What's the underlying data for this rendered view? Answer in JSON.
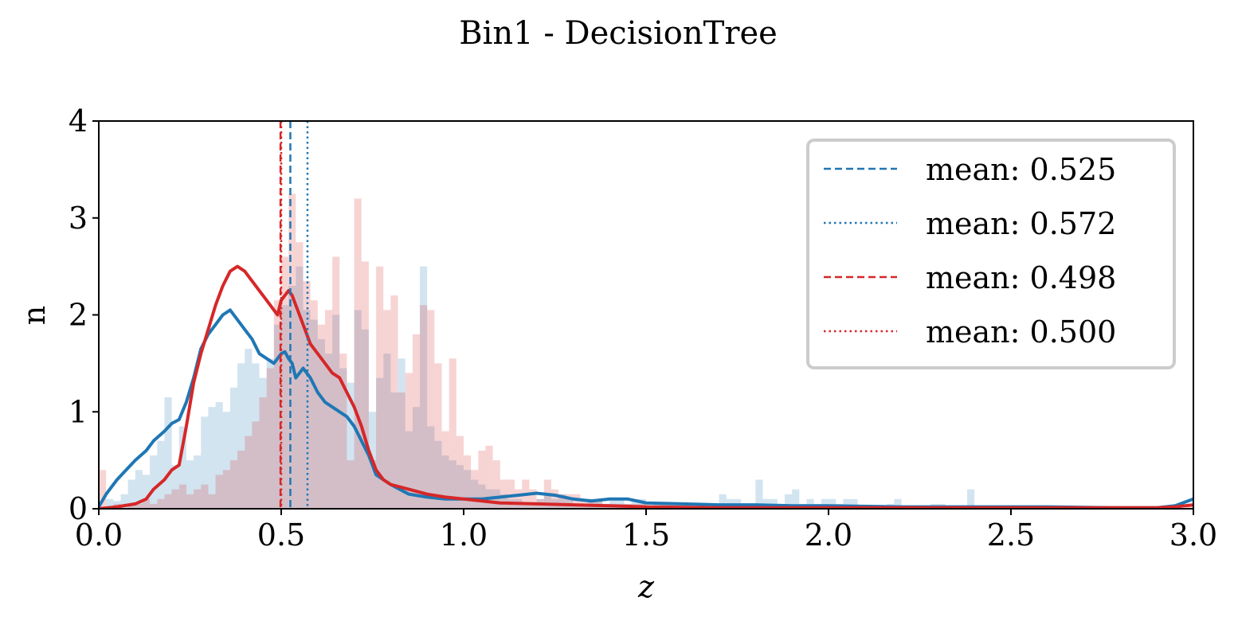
{
  "chart_data": {
    "type": "histogram+line",
    "title": "Bin1 - DecisionTree",
    "xlabel": "z",
    "ylabel": "n",
    "xlim": [
      0.0,
      3.0
    ],
    "ylim": [
      0,
      4
    ],
    "xticks": [
      "0.0",
      "0.5",
      "1.0",
      "1.5",
      "2.0",
      "2.5",
      "3.0"
    ],
    "yticks": [
      "0",
      "1",
      "2",
      "3",
      "4"
    ],
    "legend_position": "top-right",
    "colors": {
      "blue": "#1f77b4",
      "red": "#d62728"
    },
    "histograms": [
      {
        "color": "#1f77b4",
        "opacity": 0.2,
        "bin_width": 0.02,
        "values": [
          0.0,
          0.1,
          0.08,
          0.15,
          0.3,
          0.4,
          0.35,
          0.55,
          0.7,
          1.15,
          0.45,
          0.85,
          0.5,
          0.55,
          0.95,
          1.05,
          1.1,
          1.0,
          1.25,
          1.5,
          1.65,
          1.5,
          1.35,
          1.55,
          1.9,
          2.1,
          2.3,
          2.5,
          2.05,
          1.95,
          1.75,
          1.6,
          2.0,
          1.45,
          1.3,
          2.05,
          1.85,
          1.0,
          1.35,
          1.6,
          1.2,
          1.55,
          0.8,
          1.05,
          2.5,
          0.85,
          0.7,
          0.55,
          0.5,
          0.45,
          0.4,
          0.3,
          0.25,
          0.2,
          0.2,
          0.15,
          0.1,
          0.1,
          0.05,
          0.05,
          0.1,
          0.15,
          0.1,
          0.15,
          0.1,
          0.05,
          0.05,
          0.1,
          0.1,
          0.05,
          0.1,
          0.1,
          0.05,
          0.1,
          0.1,
          0.0,
          0.05,
          0.05,
          0.05,
          0.05,
          0.05,
          0.05,
          0.0,
          0.0,
          0.0,
          0.15,
          0.1,
          0.1,
          0.0,
          0.0,
          0.3,
          0.1,
          0.1,
          0.05,
          0.15,
          0.2,
          0.05,
          0.1,
          0.05,
          0.1,
          0.1,
          0.05,
          0.1,
          0.1,
          0.0,
          0.0,
          0.0,
          0.0,
          0.05,
          0.1,
          0.0,
          0.0,
          0.0,
          0.0,
          0.05,
          0.05,
          0.0,
          0.0,
          0.0,
          0.2,
          0.0,
          0.0,
          0.0,
          0.0,
          0.0,
          0.0,
          0.0,
          0.0,
          0.0,
          0.0,
          0.0,
          0.0,
          0.0,
          0.0,
          0.0,
          0.0,
          0.0,
          0.0,
          0.0,
          0.0,
          0.0,
          0.0,
          0.0,
          0.0,
          0.0,
          0.0,
          0.0,
          0.0,
          0.0,
          0.0
        ]
      },
      {
        "color": "#d62728",
        "opacity": 0.2,
        "bin_width": 0.02,
        "values": [
          0.4,
          0.0,
          0.05,
          0.0,
          0.05,
          0.05,
          0.1,
          0.05,
          0.1,
          0.15,
          0.2,
          0.25,
          0.15,
          0.2,
          0.25,
          0.15,
          0.35,
          0.4,
          0.5,
          0.6,
          0.75,
          0.9,
          1.15,
          1.45,
          2.15,
          2.6,
          3.25,
          2.75,
          2.35,
          2.15,
          1.9,
          2.05,
          2.6,
          1.6,
          0.5,
          3.2,
          2.55,
          0.5,
          2.5,
          2.05,
          2.2,
          1.2,
          1.4,
          1.8,
          2.1,
          2.05,
          1.5,
          0.8,
          1.55,
          0.75,
          0.55,
          0.4,
          0.6,
          0.65,
          0.5,
          0.3,
          0.3,
          0.2,
          0.3,
          0.2,
          0.1,
          0.3,
          0.2,
          0.15,
          0.15,
          0.15,
          0.1,
          0.1,
          0.1,
          0.05,
          0.05,
          0.05,
          0.05,
          0.05,
          0.05,
          0.0,
          0.0,
          0.05,
          0.05,
          0.05,
          0.05,
          0.0,
          0.0,
          0.0,
          0.0,
          0.0,
          0.0,
          0.0,
          0.0,
          0.0,
          0.0,
          0.0,
          0.0,
          0.0,
          0.0,
          0.0,
          0.0,
          0.0,
          0.0,
          0.0,
          0.0,
          0.0,
          0.0,
          0.0,
          0.0,
          0.0,
          0.0,
          0.0,
          0.0,
          0.0,
          0.0,
          0.0,
          0.0,
          0.0,
          0.0,
          0.0,
          0.0,
          0.0,
          0.0,
          0.0,
          0.0,
          0.0,
          0.0,
          0.0,
          0.0,
          0.0,
          0.0,
          0.0,
          0.0,
          0.0,
          0.0,
          0.0,
          0.0,
          0.0,
          0.0,
          0.0,
          0.0,
          0.0,
          0.0,
          0.0,
          0.0,
          0.0,
          0.0,
          0.0,
          0.0,
          0.0,
          0.0,
          0.0,
          0.0,
          0.05
        ]
      }
    ],
    "series": [
      {
        "color": "#1f77b4",
        "x": [
          0.0,
          0.02,
          0.05,
          0.08,
          0.1,
          0.13,
          0.15,
          0.18,
          0.2,
          0.22,
          0.24,
          0.26,
          0.28,
          0.3,
          0.32,
          0.34,
          0.36,
          0.38,
          0.4,
          0.42,
          0.44,
          0.46,
          0.48,
          0.5,
          0.51,
          0.52,
          0.53,
          0.54,
          0.55,
          0.56,
          0.58,
          0.6,
          0.62,
          0.64,
          0.66,
          0.68,
          0.7,
          0.72,
          0.74,
          0.76,
          0.78,
          0.8,
          0.85,
          0.9,
          0.95,
          1.0,
          1.05,
          1.1,
          1.15,
          1.2,
          1.25,
          1.3,
          1.35,
          1.4,
          1.45,
          1.5,
          1.6,
          1.7,
          1.8,
          1.9,
          2.0,
          2.2,
          2.4,
          2.6,
          2.8,
          2.9,
          2.95,
          3.0
        ],
        "y": [
          0.02,
          0.15,
          0.3,
          0.42,
          0.5,
          0.6,
          0.7,
          0.8,
          0.88,
          0.92,
          1.1,
          1.35,
          1.65,
          1.8,
          1.9,
          2.0,
          2.05,
          1.95,
          1.85,
          1.75,
          1.6,
          1.55,
          1.5,
          1.6,
          1.62,
          1.55,
          1.5,
          1.35,
          1.4,
          1.45,
          1.35,
          1.2,
          1.1,
          1.05,
          1.0,
          0.95,
          0.85,
          0.7,
          0.55,
          0.35,
          0.3,
          0.25,
          0.15,
          0.12,
          0.1,
          0.1,
          0.1,
          0.12,
          0.14,
          0.16,
          0.14,
          0.1,
          0.08,
          0.1,
          0.1,
          0.06,
          0.05,
          0.04,
          0.04,
          0.03,
          0.03,
          0.02,
          0.02,
          0.02,
          0.01,
          0.01,
          0.03,
          0.1
        ]
      },
      {
        "color": "#d62728",
        "x": [
          0.0,
          0.05,
          0.1,
          0.13,
          0.15,
          0.18,
          0.2,
          0.22,
          0.24,
          0.26,
          0.28,
          0.3,
          0.32,
          0.34,
          0.36,
          0.38,
          0.4,
          0.42,
          0.44,
          0.46,
          0.48,
          0.49,
          0.5,
          0.51,
          0.52,
          0.53,
          0.54,
          0.56,
          0.58,
          0.6,
          0.62,
          0.64,
          0.66,
          0.68,
          0.7,
          0.72,
          0.74,
          0.76,
          0.78,
          0.8,
          0.85,
          0.9,
          0.95,
          1.0,
          1.05,
          1.1,
          1.2,
          1.3,
          1.4,
          1.5,
          1.7,
          2.0,
          2.5,
          2.9,
          2.95,
          3.0
        ],
        "y": [
          0.0,
          0.02,
          0.05,
          0.1,
          0.2,
          0.3,
          0.4,
          0.45,
          0.85,
          1.3,
          1.6,
          1.85,
          2.1,
          2.3,
          2.45,
          2.5,
          2.45,
          2.35,
          2.25,
          2.15,
          2.05,
          2.0,
          2.15,
          2.2,
          2.25,
          2.2,
          2.1,
          1.9,
          1.7,
          1.6,
          1.5,
          1.4,
          1.35,
          1.2,
          1.05,
          0.85,
          0.6,
          0.4,
          0.3,
          0.25,
          0.2,
          0.15,
          0.12,
          0.1,
          0.08,
          0.06,
          0.05,
          0.04,
          0.03,
          0.02,
          0.01,
          0.01,
          0.01,
          0.01,
          0.02,
          0.04
        ]
      }
    ],
    "vlines": [
      {
        "x": 0.525,
        "color": "#1f77b4",
        "style": "dashed",
        "label": "mean: 0.525"
      },
      {
        "x": 0.572,
        "color": "#1f77b4",
        "style": "dotted",
        "label": "mean: 0.572"
      },
      {
        "x": 0.498,
        "color": "#d62728",
        "style": "dashed",
        "label": "mean: 0.498"
      },
      {
        "x": 0.5,
        "color": "#d62728",
        "style": "dotted",
        "label": "mean: 0.500"
      }
    ]
  }
}
